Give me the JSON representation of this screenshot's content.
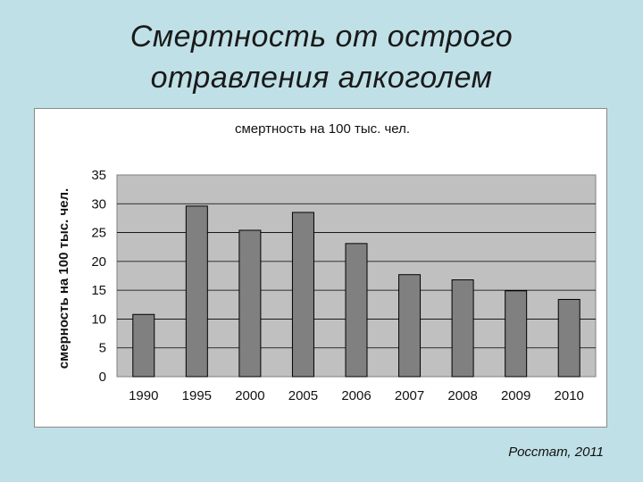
{
  "slide": {
    "title_line1": "Смертность от острого",
    "title_line2": "отравления алкоголем",
    "source": "Росстат, 2011"
  },
  "chart_data": {
    "type": "bar",
    "title": "смертность на 100 тыс. чел.",
    "ylabel": "смерность на 100 тыс. чел.",
    "xlabel": "",
    "categories": [
      "1990",
      "1995",
      "2000",
      "2005",
      "2006",
      "2007",
      "2008",
      "2009",
      "2010"
    ],
    "values": [
      10.8,
      29.6,
      25.4,
      28.5,
      23.1,
      17.7,
      16.8,
      14.9,
      13.4
    ],
    "ylim": [
      0,
      35
    ],
    "yticks": [
      0,
      5,
      10,
      15,
      20,
      25,
      30,
      35
    ],
    "grid": true,
    "legend": "none",
    "colors": {
      "bar": "#808080",
      "plot_bg": "#c0c0c0",
      "gridline": "#000000"
    }
  }
}
